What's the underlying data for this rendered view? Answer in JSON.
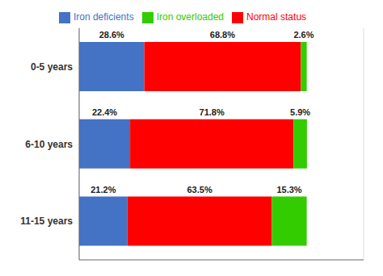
{
  "chart_data": {
    "type": "bar",
    "orientation": "horizontal",
    "stacked": true,
    "categories": [
      "0-5 years",
      "6-10 years",
      "11-15 years"
    ],
    "series": [
      {
        "name": "Iron deficients",
        "color": "#4472C4",
        "values": [
          28.6,
          22.4,
          21.2
        ],
        "value_labels": [
          "28.6%",
          "22.4%",
          "21.2%"
        ]
      },
      {
        "name": "Normal status",
        "color": "#FF0000",
        "values": [
          68.8,
          71.8,
          63.5
        ],
        "value_labels": [
          "68.8%",
          "71.8%",
          "63.5%"
        ]
      },
      {
        "name": "Iron overloaded",
        "color": "#33CC00",
        "values": [
          2.6,
          5.9,
          15.3
        ],
        "value_labels": [
          "2.6%",
          "5.9%",
          "15.3%"
        ]
      }
    ],
    "xlim": [
      0,
      125
    ],
    "xticks": [
      0,
      25,
      50,
      75,
      100,
      125
    ],
    "grid": true,
    "legend": "top",
    "data_labels": true,
    "tick_labels": "y"
  }
}
